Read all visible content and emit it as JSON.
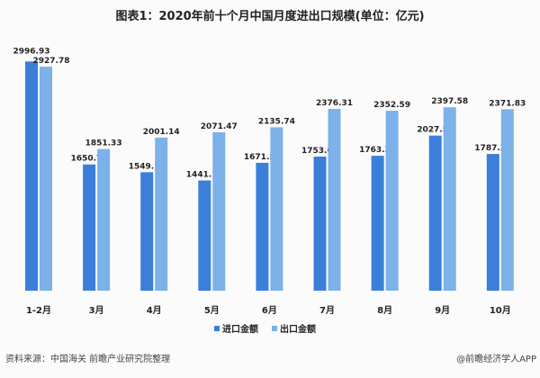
{
  "chart_data": {
    "type": "bar",
    "title": "图表1：2020年前十个月中国月度进出口规模(单位：亿元)",
    "categories": [
      "1-2月",
      "3月",
      "4月",
      "5月",
      "6月",
      "7月",
      "8月",
      "9月",
      "10月"
    ],
    "series": [
      {
        "name": "进口金额",
        "color": "#3b7fdb",
        "values": [
          2996.93,
          1650.74,
          1549.12,
          1441.15,
          1671.53,
          1753.02,
          1763.34,
          2027.59,
          1787.39
        ]
      },
      {
        "name": "出口金额",
        "color": "#7cb1ea",
        "values": [
          2927.78,
          1851.33,
          2001.14,
          2071.47,
          2135.74,
          2376.31,
          2352.59,
          2397.58,
          2371.83
        ]
      }
    ],
    "ylim": [
      0,
      3000
    ],
    "grid": false,
    "legend_position": "bottom"
  },
  "footer": {
    "source": "资料来源：中国海关 前瞻产业研究院整理",
    "credit": "@前瞻经济学人APP"
  }
}
